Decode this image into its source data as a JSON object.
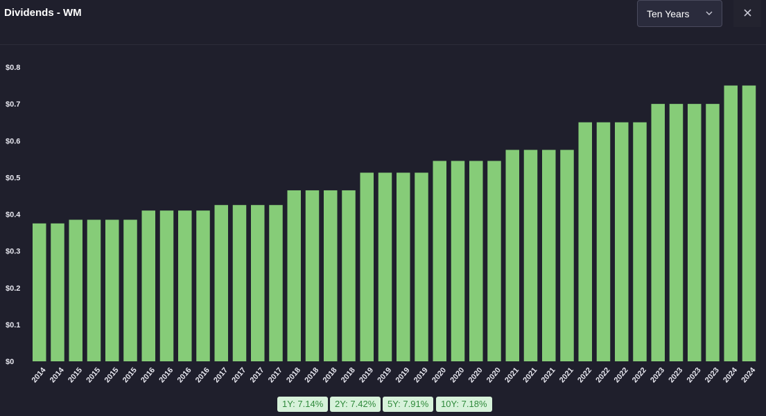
{
  "header": {
    "title": "Dividends - WM",
    "range_select": {
      "selected": "Ten Years",
      "icon": "chevron-down-icon"
    },
    "close_icon": "close-icon"
  },
  "colors": {
    "background": "#1f1f2c",
    "bar": "#86cc78",
    "axis_text": "#e6e6ee",
    "badge_bg": "#d7f2da",
    "badge_text": "#2f8a3b"
  },
  "chart_data": {
    "type": "bar",
    "title": "",
    "xlabel": "",
    "ylabel": "",
    "ylim": [
      0,
      0.8
    ],
    "yticks": [
      "$0",
      "$0.1",
      "$0.2",
      "$0.3",
      "$0.4",
      "$0.5",
      "$0.6",
      "$0.7",
      "$0.8"
    ],
    "grid": false,
    "categories": [
      "2014",
      "2014",
      "2015",
      "2015",
      "2015",
      "2015",
      "2016",
      "2016",
      "2016",
      "2016",
      "2017",
      "2017",
      "2017",
      "2017",
      "2018",
      "2018",
      "2018",
      "2018",
      "2019",
      "2019",
      "2019",
      "2019",
      "2020",
      "2020",
      "2020",
      "2020",
      "2021",
      "2021",
      "2021",
      "2021",
      "2022",
      "2022",
      "2022",
      "2022",
      "2023",
      "2023",
      "2023",
      "2023",
      "2024",
      "2024"
    ],
    "values": [
      0.375,
      0.375,
      0.385,
      0.385,
      0.385,
      0.385,
      0.41,
      0.41,
      0.41,
      0.41,
      0.425,
      0.425,
      0.425,
      0.425,
      0.465,
      0.465,
      0.465,
      0.465,
      0.513,
      0.513,
      0.513,
      0.513,
      0.545,
      0.545,
      0.545,
      0.545,
      0.575,
      0.575,
      0.575,
      0.575,
      0.65,
      0.65,
      0.65,
      0.65,
      0.7,
      0.7,
      0.7,
      0.7,
      0.75,
      0.75
    ]
  },
  "growth_badges": [
    {
      "label": "1Y: 7.14%"
    },
    {
      "label": "2Y: 7.42%"
    },
    {
      "label": "5Y: 7.91%"
    },
    {
      "label": "10Y: 7.18%"
    }
  ]
}
